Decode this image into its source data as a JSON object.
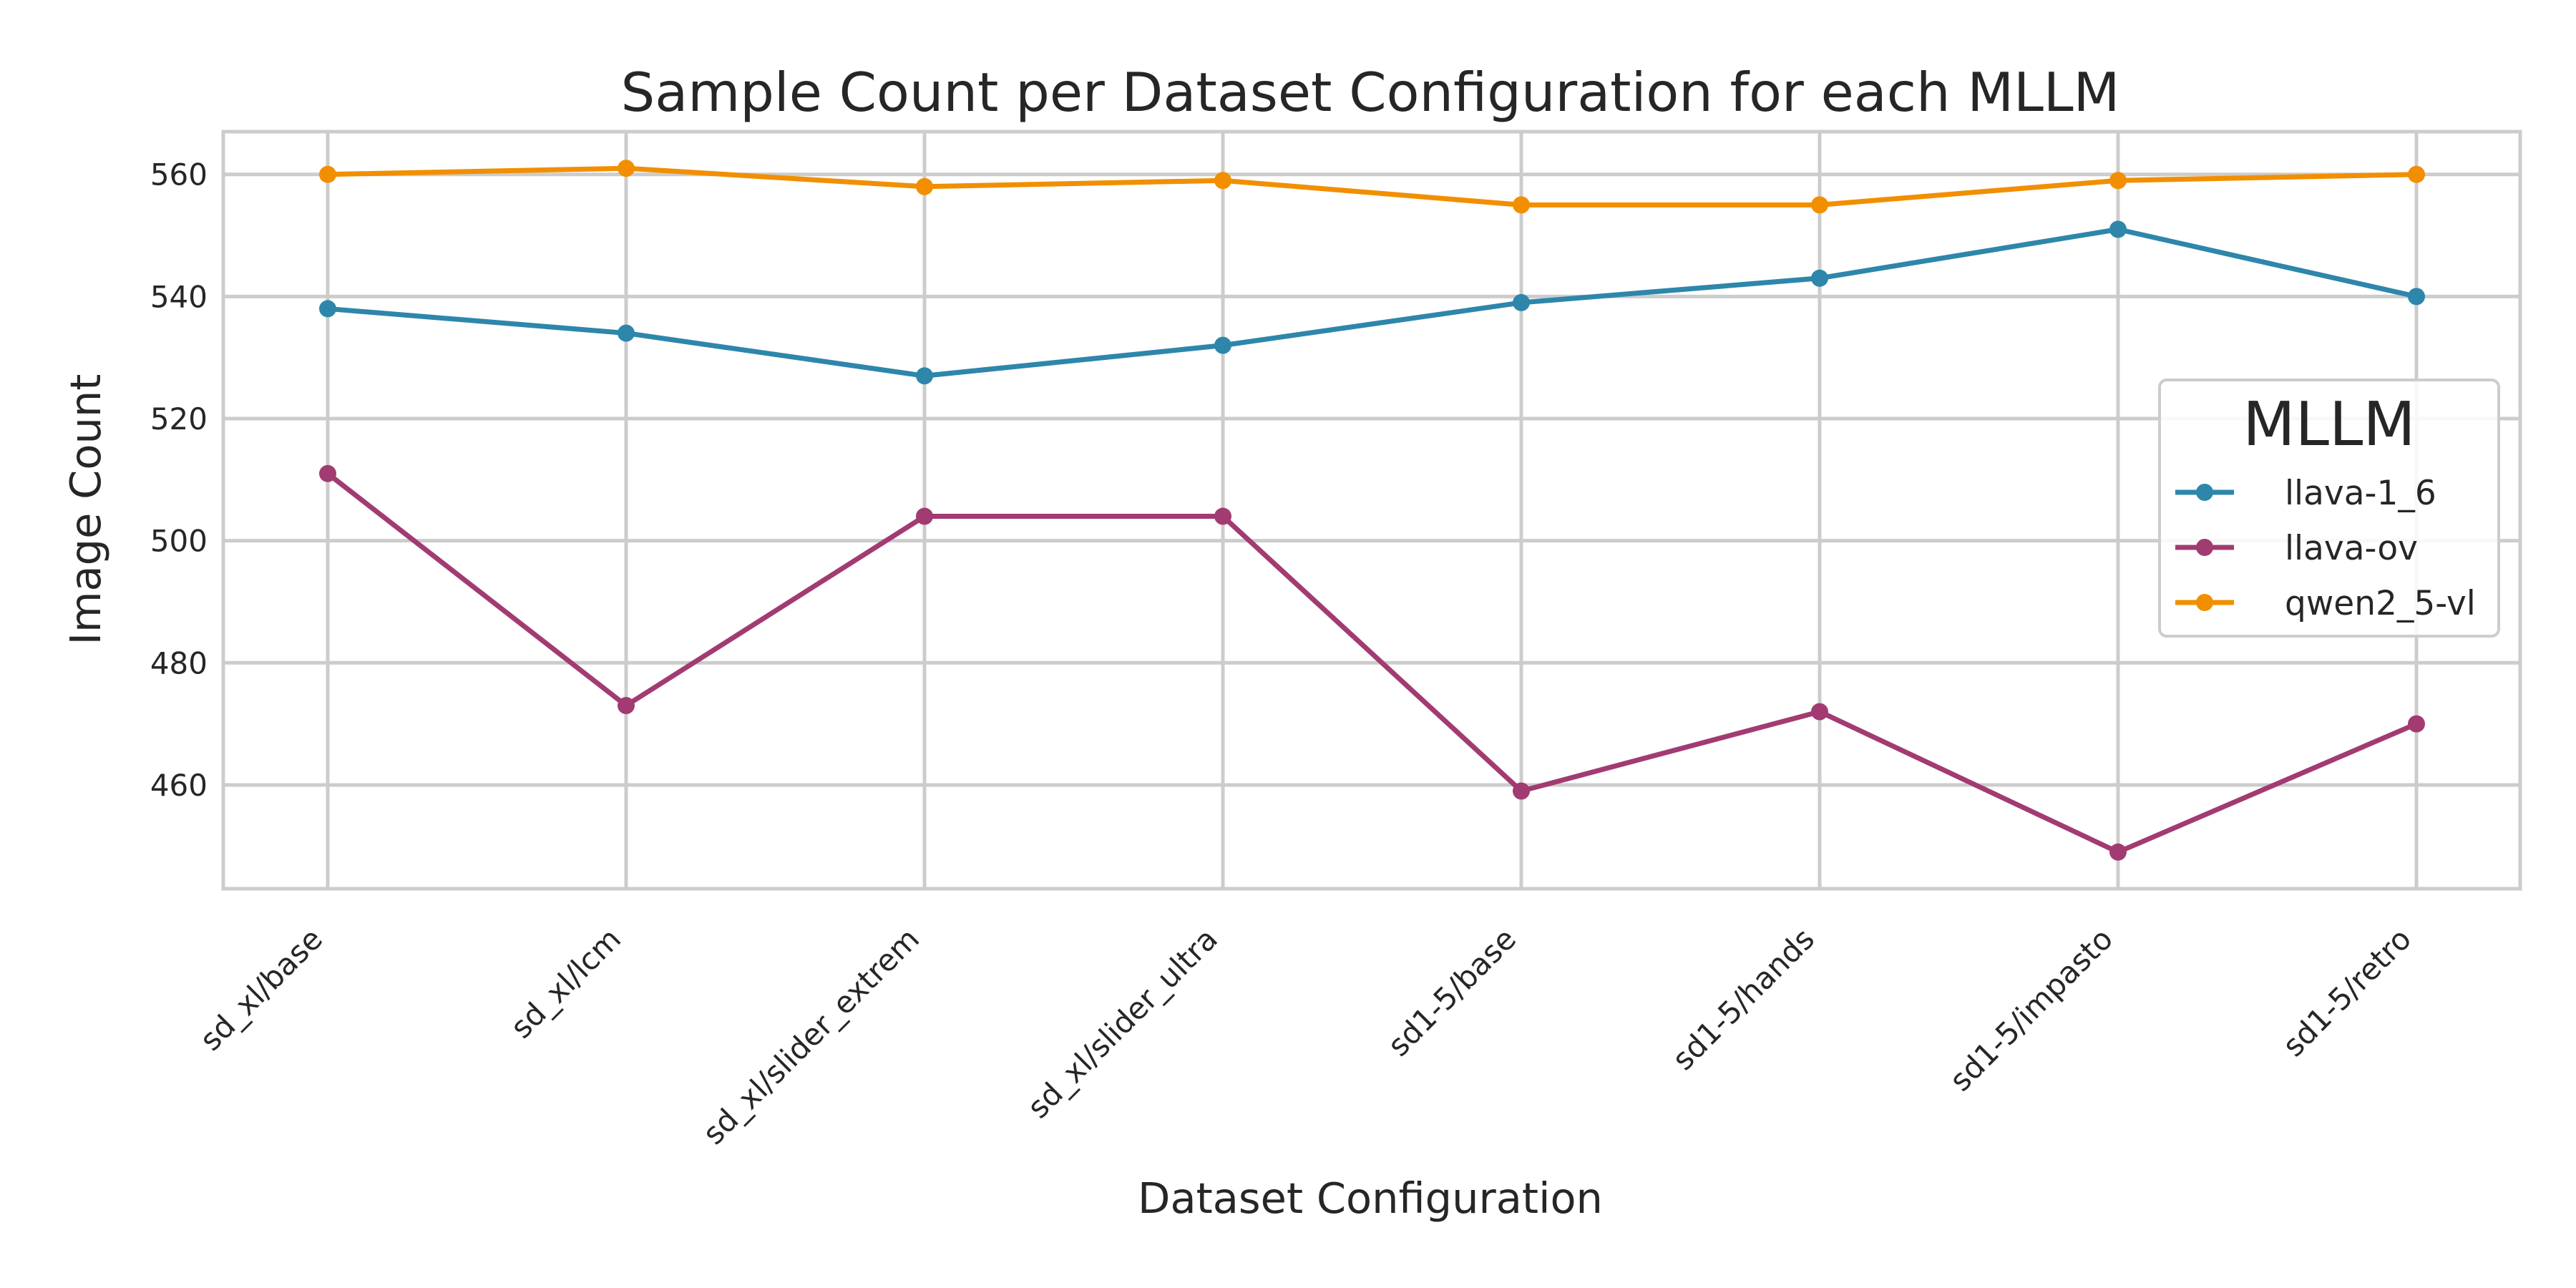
{
  "chart_data": {
    "type": "line",
    "title": "Sample Count per Dataset Configuration for each MLLM",
    "xlabel": "Dataset Configuration",
    "ylabel": "Image Count",
    "categories": [
      "sd_xl/base",
      "sd_xl/lcm",
      "sd_xl/slider_extrem",
      "sd_xl/slider_ultra",
      "sd1-5/base",
      "sd1-5/hands",
      "sd1-5/impasto",
      "sd1-5/retro"
    ],
    "ylim": [
      443,
      567
    ],
    "yticks": [
      460,
      480,
      500,
      520,
      540,
      560
    ],
    "grid": true,
    "legend": {
      "title": "MLLM",
      "position": "center-right"
    },
    "series": [
      {
        "name": "llava-1_6",
        "color": "#2e86ab",
        "values": [
          538,
          534,
          527,
          532,
          539,
          543,
          551,
          540
        ]
      },
      {
        "name": "llava-ov",
        "color": "#a23b72",
        "values": [
          511,
          473,
          504,
          504,
          459,
          472,
          449,
          470
        ]
      },
      {
        "name": "qwen2_5-vl",
        "color": "#f18f01",
        "values": [
          560,
          561,
          558,
          559,
          555,
          555,
          559,
          560
        ]
      }
    ]
  }
}
